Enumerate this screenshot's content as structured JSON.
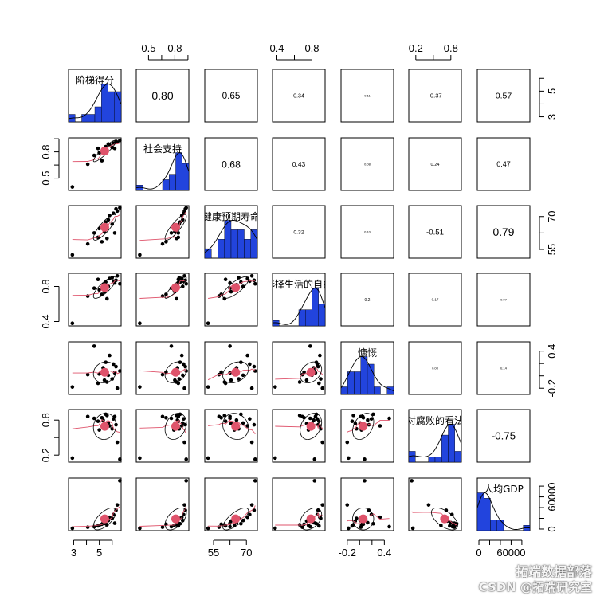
{
  "chart_data": {
    "type": "scatter",
    "variables": [
      "阶梯得分",
      "社会支持",
      "健康预期寿命",
      "选择生活的自由",
      "慷慨",
      "对腐败的看法",
      "人均GDP"
    ],
    "ranges": [
      [
        2.6,
        6.7
      ],
      [
        0.36,
        0.96
      ],
      [
        51,
        75
      ],
      [
        0.35,
        0.95
      ],
      [
        -0.3,
        0.55
      ],
      [
        0.08,
        0.98
      ],
      [
        -3000,
        95000
      ]
    ],
    "ticks": [
      {
        "values": [
          3,
          5
        ],
        "labels": [
          "3",
          "5"
        ]
      },
      {
        "values": [
          0.5,
          0.8
        ],
        "labels": [
          "0.5",
          "0.8"
        ]
      },
      {
        "values": [
          55,
          70
        ],
        "labels": [
          "55",
          "70"
        ]
      },
      {
        "values": [
          0.4,
          0.8
        ],
        "labels": [
          "0.4",
          "0.8"
        ]
      },
      {
        "values": [
          -0.2,
          0.4
        ],
        "labels": [
          "-0.2",
          "0.4"
        ]
      },
      {
        "values": [
          0.2,
          0.8
        ],
        "labels": [
          "0.2",
          "0.8"
        ]
      },
      {
        "values": [
          0,
          60000
        ],
        "labels": [
          "0",
          "60000"
        ]
      }
    ],
    "correlations": [
      {
        "row": 0,
        "col": 1,
        "value": "0.80"
      },
      {
        "row": 0,
        "col": 2,
        "value": "0.65"
      },
      {
        "row": 0,
        "col": 3,
        "value": "0.34"
      },
      {
        "row": 0,
        "col": 4,
        "value": "0.11"
      },
      {
        "row": 0,
        "col": 5,
        "value": "-0.37"
      },
      {
        "row": 0,
        "col": 6,
        "value": "0.57"
      },
      {
        "row": 1,
        "col": 2,
        "value": "0.68"
      },
      {
        "row": 1,
        "col": 3,
        "value": "0.43"
      },
      {
        "row": 1,
        "col": 4,
        "value": "0.08"
      },
      {
        "row": 1,
        "col": 5,
        "value": "0.24"
      },
      {
        "row": 1,
        "col": 6,
        "value": "0.47"
      },
      {
        "row": 2,
        "col": 3,
        "value": "0.32"
      },
      {
        "row": 2,
        "col": 4,
        "value": "0.10"
      },
      {
        "row": 2,
        "col": 5,
        "value": "-0.51"
      },
      {
        "row": 2,
        "col": 6,
        "value": "0.79"
      },
      {
        "row": 3,
        "col": 4,
        "value": "0.2"
      },
      {
        "row": 3,
        "col": 5,
        "value": "0.17"
      },
      {
        "row": 3,
        "col": 6,
        "value": "0.07"
      },
      {
        "row": 4,
        "col": 5,
        "value": "0.08"
      },
      {
        "row": 4,
        "col": 6,
        "value": "0.14"
      },
      {
        "row": 5,
        "col": 6,
        "value": "-0.75"
      }
    ],
    "points": [
      [
        2.9,
        0.4,
        52.5,
        0.38,
        -0.18,
        0.15,
        1500
      ],
      [
        4.1,
        0.66,
        57.5,
        0.69,
        0.02,
        0.86,
        3500
      ],
      [
        4.6,
        0.76,
        62.5,
        0.78,
        0.48,
        0.83,
        4500
      ],
      [
        4.9,
        0.84,
        60.5,
        0.88,
        -0.12,
        0.78,
        6000
      ],
      [
        5.0,
        0.79,
        64.5,
        0.76,
        0.03,
        0.63,
        7000
      ],
      [
        5.2,
        0.7,
        58.5,
        0.71,
        0.06,
        0.84,
        9000
      ],
      [
        5.3,
        0.83,
        65.5,
        0.82,
        0.13,
        0.8,
        12000
      ],
      [
        5.4,
        0.8,
        63.0,
        0.74,
        -0.07,
        0.74,
        15000
      ],
      [
        5.5,
        0.86,
        67.5,
        0.85,
        0.22,
        0.9,
        10000
      ],
      [
        5.6,
        0.82,
        60.0,
        0.66,
        -0.1,
        0.88,
        8000
      ],
      [
        5.7,
        0.89,
        68.5,
        0.8,
        0.01,
        0.75,
        16000
      ],
      [
        5.8,
        0.88,
        70.5,
        0.89,
        0.33,
        0.7,
        22000
      ],
      [
        6.0,
        0.85,
        66.5,
        0.9,
        -0.05,
        0.65,
        20000
      ],
      [
        6.1,
        0.9,
        71.5,
        0.86,
        0.19,
        0.82,
        27000
      ],
      [
        6.2,
        0.84,
        62.5,
        0.84,
        0.05,
        0.86,
        11000
      ],
      [
        6.3,
        0.92,
        73.5,
        0.87,
        0.15,
        0.72,
        35000
      ],
      [
        6.4,
        0.91,
        72.5,
        0.92,
        -0.2,
        0.42,
        45000
      ],
      [
        6.6,
        0.93,
        74.0,
        0.83,
        0.08,
        0.13,
        90000
      ]
    ],
    "colors": {
      "bars": "#2244dd",
      "points": "#000000",
      "ellipse_center": "#df536b",
      "loess": "#df536b"
    }
  },
  "watermark": {
    "line1": "拓端数据部落",
    "line2": "CSDN @拓端研究室"
  }
}
